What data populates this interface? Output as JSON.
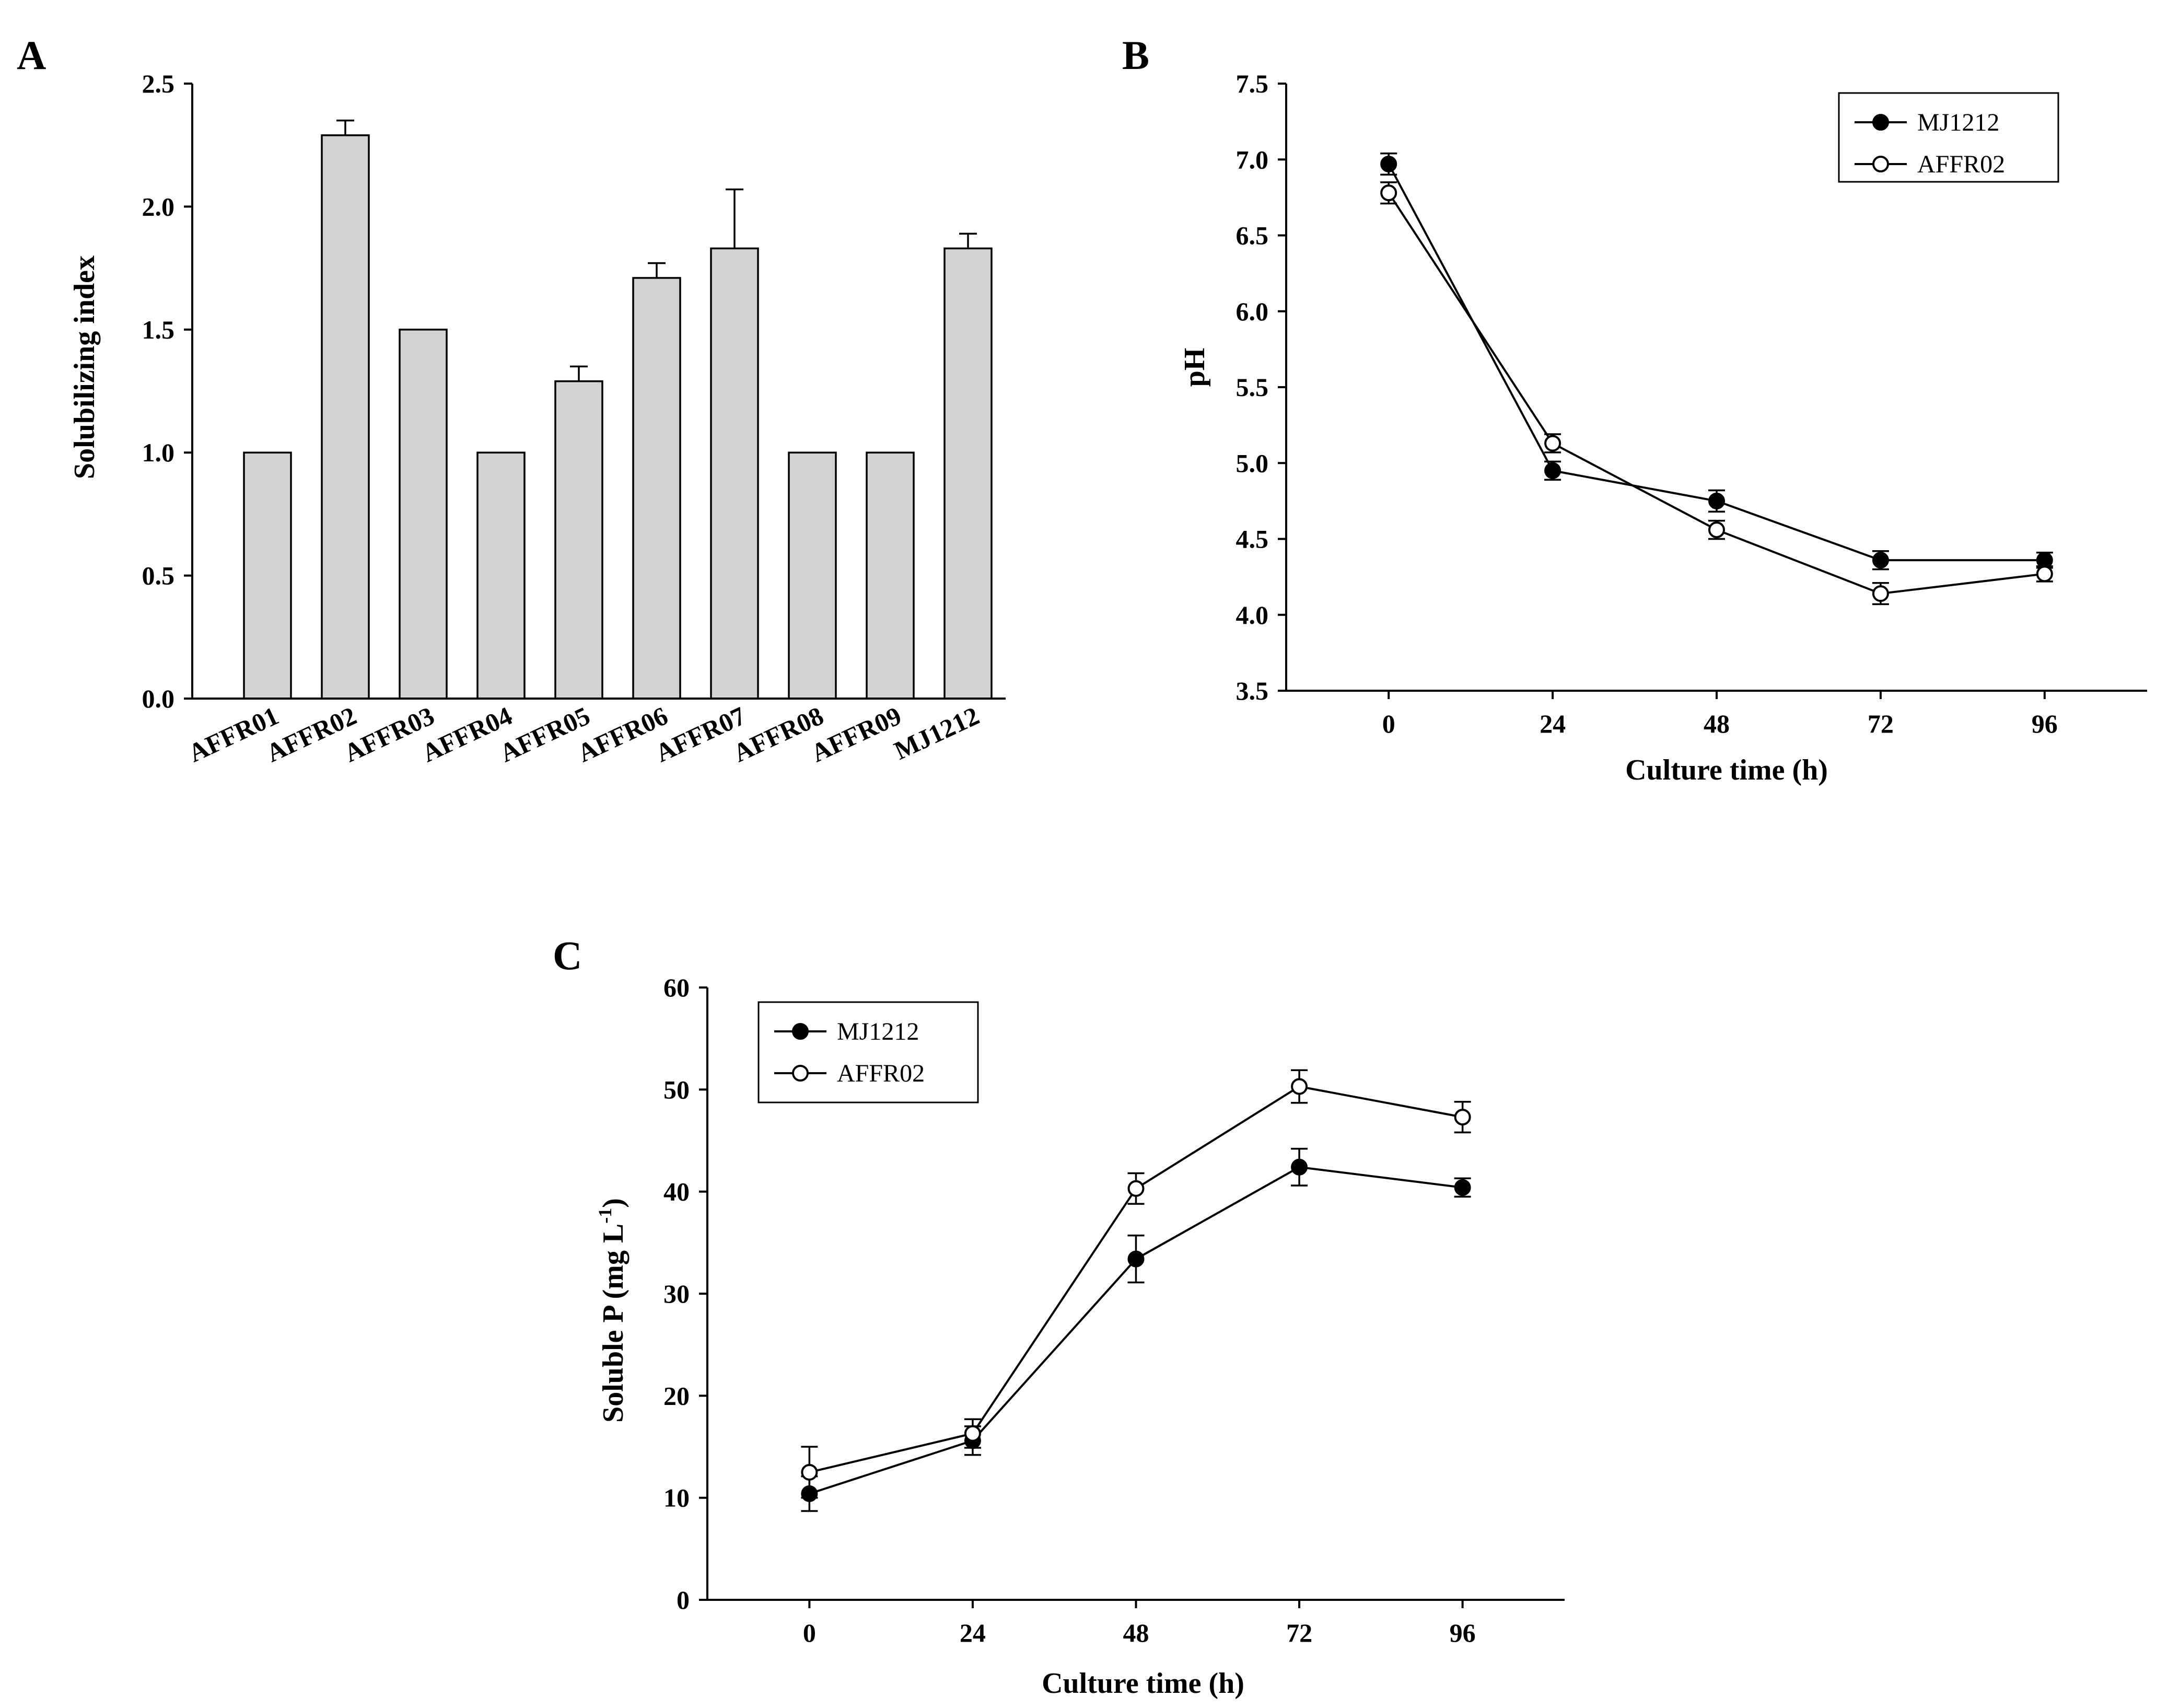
{
  "chart_data": [
    {
      "panel": "A",
      "type": "bar",
      "title": "",
      "xlabel": "",
      "ylabel": "Solubilizing index",
      "ylim": [
        0,
        2.5
      ],
      "yticks": [
        "0.0",
        "0.5",
        "1.0",
        "1.5",
        "2.0",
        "2.5"
      ],
      "categories": [
        "AFFR01",
        "AFFR02",
        "AFFR03",
        "AFFR04",
        "AFFR05",
        "AFFR06",
        "AFFR07",
        "AFFR08",
        "AFFR09",
        "MJ1212"
      ],
      "values": [
        1.0,
        2.29,
        1.5,
        1.0,
        1.29,
        1.71,
        1.83,
        1.0,
        1.0,
        1.83
      ],
      "errors": [
        0,
        0.06,
        0,
        0,
        0.06,
        0.06,
        0.24,
        0,
        0,
        0.06
      ]
    },
    {
      "panel": "B",
      "type": "line",
      "title": "",
      "xlabel": "Culture time (h)",
      "ylabel": "pH",
      "xlim": [
        -15,
        111
      ],
      "ylim": [
        3.5,
        7.5
      ],
      "xticks": [
        "0",
        "24",
        "48",
        "72",
        "96"
      ],
      "yticks": [
        "3.5",
        "4.0",
        "4.5",
        "5.0",
        "5.5",
        "6.0",
        "6.5",
        "7.0",
        "7.5"
      ],
      "x": [
        0,
        24,
        48,
        72,
        96
      ],
      "legend_position": "top-right",
      "series": [
        {
          "name": "MJ1212",
          "marker": "filled",
          "values": [
            6.97,
            4.95,
            4.75,
            4.36,
            4.36
          ],
          "errors": [
            0.07,
            0.06,
            0.07,
            0.06,
            0.05
          ]
        },
        {
          "name": "AFFR02",
          "marker": "open",
          "values": [
            6.78,
            5.13,
            4.56,
            4.14,
            4.27
          ],
          "errors": [
            0.07,
            0.06,
            0.06,
            0.07,
            0.05
          ]
        }
      ]
    },
    {
      "panel": "C",
      "type": "line",
      "title": "",
      "xlabel": "Culture time (h)",
      "ylabel": "Soluble P (mg L",
      "ylabel_sup": "-1",
      "ylabel_end": ")",
      "xlim": [
        -15,
        111
      ],
      "ylim": [
        0,
        60
      ],
      "xticks": [
        "0",
        "24",
        "48",
        "72",
        "96"
      ],
      "yticks": [
        "0",
        "10",
        "20",
        "30",
        "40",
        "50",
        "60"
      ],
      "x": [
        0,
        24,
        48,
        72,
        96
      ],
      "legend_position": "top-left",
      "series": [
        {
          "name": "MJ1212",
          "marker": "filled",
          "values": [
            10.4,
            15.6,
            33.4,
            42.4,
            40.4
          ],
          "errors": [
            1.7,
            1.4,
            2.3,
            1.8,
            0.9
          ]
        },
        {
          "name": "AFFR02",
          "marker": "open",
          "values": [
            12.5,
            16.3,
            40.3,
            50.3,
            47.3
          ],
          "errors": [
            2.5,
            1.4,
            1.5,
            1.6,
            1.5
          ]
        }
      ]
    }
  ]
}
